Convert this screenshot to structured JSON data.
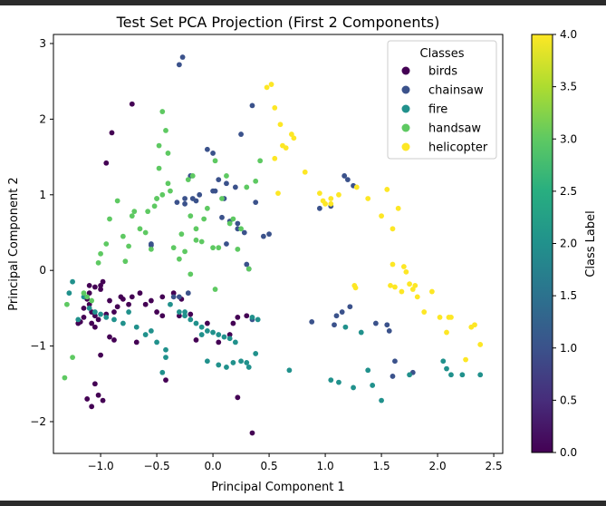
{
  "chart_data": {
    "type": "scatter",
    "title": "Test Set PCA Projection (First 2 Components)",
    "xlabel": "Principal Component 1",
    "ylabel": "Principal Component 2",
    "xlim": [
      -1.42,
      2.58
    ],
    "ylim": [
      -2.42,
      3.12
    ],
    "xticks": [
      -1.0,
      -0.5,
      0.0,
      0.5,
      1.0,
      1.5,
      2.0,
      2.5
    ],
    "xtick_labels": [
      "−1.0",
      "−0.5",
      "0.0",
      "0.5",
      "1.0",
      "1.5",
      "2.0",
      "2.5"
    ],
    "yticks": [
      -2,
      -1,
      0,
      1,
      2,
      3
    ],
    "ytick_labels": [
      "−2",
      "−1",
      "0",
      "1",
      "2",
      "3"
    ],
    "grid": false,
    "legend": {
      "title": "Classes",
      "placement": "top-right",
      "entries": [
        "birds",
        "chainsaw",
        "fire",
        "handsaw",
        "helicopter"
      ]
    },
    "colorbar": {
      "label": "Class Label",
      "min": 0.0,
      "max": 4.0,
      "ticks": [
        0.0,
        0.5,
        1.0,
        1.5,
        2.0,
        2.5,
        3.0,
        3.5,
        4.0
      ],
      "tick_labels": [
        "0.0",
        "0.5",
        "1.0",
        "1.5",
        "2.0",
        "2.5",
        "3.0",
        "3.5",
        "4.0"
      ]
    },
    "colors": {
      "birds": "#440154",
      "chainsaw": "#3b528b",
      "fire": "#21918c",
      "handsaw": "#5ec962",
      "helicopter": "#fde725"
    },
    "series": [
      {
        "name": "birds",
        "x": [
          -0.95,
          -0.9,
          -0.72,
          -1.05,
          -1.08,
          -1.1,
          -1.12,
          -1.15,
          -1.08,
          -1.05,
          -1.02,
          -1.0,
          -0.98,
          -1.1,
          -1.15,
          -1.18,
          -1.2,
          -0.95,
          -0.92,
          -0.88,
          -0.85,
          -0.82,
          -1.08,
          -1.05,
          -1.12,
          -1.02,
          -0.98,
          -1.0,
          -0.92,
          -0.88,
          -0.6,
          -0.55,
          -0.45,
          -0.35,
          -0.28,
          -0.5,
          -0.45,
          -0.42,
          -0.68,
          -0.75,
          -0.8,
          -0.72,
          -0.65,
          -1.1,
          -1.05,
          -1.0,
          -0.3,
          -0.2,
          -0.05,
          0.05,
          0.22,
          0.35,
          0.3,
          0.22,
          0.18,
          0.15,
          -0.15
        ],
        "y": [
          1.42,
          1.82,
          2.2,
          -0.6,
          -0.55,
          -0.45,
          -0.38,
          -0.5,
          -0.7,
          -0.75,
          -0.65,
          -0.25,
          -0.15,
          -0.2,
          -0.62,
          -0.68,
          -0.7,
          -0.58,
          -0.4,
          -0.55,
          -0.48,
          -0.35,
          -1.8,
          -1.5,
          -1.7,
          -1.65,
          -1.72,
          -1.12,
          -0.88,
          -0.92,
          -0.45,
          -0.4,
          -0.35,
          -0.3,
          -0.38,
          -0.55,
          -0.6,
          -1.45,
          -0.95,
          -0.45,
          -0.38,
          -0.35,
          -0.3,
          -0.3,
          -0.22,
          -0.2,
          -0.6,
          -0.58,
          -0.7,
          -0.95,
          -1.68,
          -2.15,
          -0.6,
          -0.62,
          -0.7,
          -0.85,
          -0.92
        ]
      },
      {
        "name": "chainsaw",
        "x": [
          -0.3,
          -0.27,
          -0.55,
          -0.55,
          -0.32,
          -0.25,
          -0.2,
          -0.05,
          0.0,
          0.05,
          0.1,
          0.12,
          0.2,
          0.25,
          0.35,
          0.38,
          0.45,
          0.5,
          -0.25,
          -0.18,
          -0.12,
          0.0,
          0.08,
          0.15,
          0.22,
          -0.35,
          -0.3,
          -0.22,
          0.35,
          0.88,
          1.08,
          1.15,
          1.17,
          1.2,
          1.25,
          1.05,
          0.95,
          1.45,
          1.55,
          1.57,
          1.6,
          1.62,
          1.78,
          1.22,
          1.1,
          0.3,
          0.32,
          -0.15,
          0.02,
          0.12,
          0.22,
          0.28
        ],
        "y": [
          2.72,
          2.82,
          0.35,
          0.33,
          0.9,
          0.95,
          1.25,
          1.6,
          1.55,
          1.2,
          0.95,
          1.15,
          1.1,
          1.8,
          2.18,
          0.9,
          0.45,
          0.48,
          0.88,
          0.95,
          1.0,
          1.05,
          0.7,
          0.65,
          0.62,
          -0.35,
          -0.35,
          -0.3,
          -0.65,
          -0.68,
          -0.72,
          -0.55,
          1.25,
          1.2,
          1.12,
          0.85,
          0.82,
          -0.7,
          -0.72,
          -0.8,
          -1.4,
          -1.2,
          -1.35,
          -0.48,
          -0.6,
          0.08,
          0.02,
          0.92,
          1.05,
          0.35,
          0.55,
          0.5
        ]
      },
      {
        "name": "fire",
        "x": [
          -1.25,
          -1.28,
          -1.15,
          -1.1,
          -1.05,
          -1.0,
          -0.95,
          -0.88,
          -0.8,
          -0.75,
          -0.68,
          -0.6,
          -0.55,
          -0.5,
          -0.42,
          -0.38,
          -0.3,
          -0.25,
          -0.2,
          -0.15,
          -0.1,
          -0.05,
          0.0,
          0.05,
          0.1,
          0.15,
          0.2,
          0.25,
          0.3,
          0.35,
          0.4,
          -0.1,
          -0.05,
          0.05,
          0.12,
          0.18,
          0.32,
          0.38,
          0.68,
          1.05,
          1.12,
          1.25,
          1.38,
          1.42,
          1.5,
          1.75,
          2.05,
          2.12,
          2.22,
          2.38,
          2.08,
          1.32,
          1.18,
          -0.42,
          -0.45,
          -0.25,
          -1.2
        ],
        "y": [
          -0.15,
          -0.3,
          -0.35,
          -0.5,
          -0.55,
          -0.58,
          -0.62,
          -0.65,
          -0.7,
          -0.55,
          -0.75,
          -0.85,
          -0.8,
          -0.95,
          -1.05,
          -0.45,
          -0.55,
          -0.6,
          -0.65,
          -0.7,
          -0.75,
          -0.8,
          -0.82,
          -0.85,
          -0.88,
          -0.9,
          -0.95,
          -1.2,
          -1.22,
          -0.62,
          -0.65,
          -0.85,
          -1.2,
          -1.25,
          -1.28,
          -1.22,
          -1.28,
          -1.1,
          -1.32,
          -1.45,
          -1.48,
          -1.55,
          -1.32,
          -1.52,
          -1.72,
          -1.38,
          -1.2,
          -1.38,
          -1.38,
          -1.38,
          -1.3,
          -0.82,
          -0.75,
          -1.15,
          -1.35,
          -0.55,
          -0.65
        ]
      },
      {
        "name": "handsaw",
        "x": [
          -1.3,
          -1.32,
          -1.25,
          -1.15,
          -1.12,
          -1.08,
          -1.02,
          -1.0,
          -0.95,
          -0.92,
          -0.85,
          -0.8,
          -0.78,
          -0.75,
          -0.72,
          -0.7,
          -0.65,
          -0.6,
          -0.58,
          -0.55,
          -0.5,
          -0.48,
          -0.45,
          -0.42,
          -0.4,
          -0.38,
          -0.35,
          -0.3,
          -0.28,
          -0.22,
          -0.2,
          -0.18,
          -0.15,
          -0.1,
          -0.08,
          -0.05,
          0.0,
          0.02,
          0.05,
          0.08,
          0.12,
          0.15,
          0.18,
          0.22,
          0.25,
          0.3,
          0.32,
          0.38,
          0.42,
          -0.48,
          -0.5,
          -0.45,
          -0.4,
          -0.52,
          -0.2,
          -0.25,
          -0.15,
          0.02
        ],
        "y": [
          -0.45,
          -1.42,
          -1.15,
          -0.3,
          -0.35,
          -0.4,
          0.1,
          0.22,
          0.35,
          0.68,
          0.92,
          0.45,
          0.12,
          0.32,
          0.72,
          0.78,
          0.55,
          0.5,
          0.78,
          0.28,
          0.95,
          1.65,
          2.1,
          1.85,
          1.55,
          1.05,
          0.3,
          0.15,
          0.48,
          1.2,
          0.72,
          1.25,
          0.55,
          0.38,
          0.68,
          0.82,
          0.3,
          1.45,
          0.3,
          0.95,
          1.25,
          0.62,
          0.68,
          0.28,
          0.55,
          1.1,
          0.02,
          1.18,
          1.45,
          1.35,
          0.95,
          1.0,
          1.15,
          0.85,
          -0.05,
          0.25,
          0.4,
          -0.25
        ]
      },
      {
        "name": "helicopter",
        "x": [
          0.48,
          0.52,
          0.55,
          0.6,
          0.62,
          0.65,
          0.7,
          0.72,
          0.55,
          0.58,
          0.82,
          0.95,
          1.0,
          1.05,
          1.12,
          1.05,
          0.98,
          1.28,
          1.38,
          1.5,
          1.55,
          1.6,
          1.62,
          1.58,
          1.6,
          1.65,
          1.68,
          1.7,
          1.72,
          1.75,
          1.78,
          1.8,
          1.82,
          1.88,
          1.95,
          2.02,
          2.1,
          2.12,
          2.08,
          2.3,
          2.33,
          2.38,
          2.25,
          1.26,
          1.27
        ],
        "y": [
          2.42,
          2.46,
          2.15,
          1.93,
          1.65,
          1.62,
          1.8,
          1.75,
          1.48,
          1.02,
          1.3,
          1.02,
          0.88,
          0.95,
          1.0,
          0.88,
          0.92,
          1.1,
          0.95,
          0.72,
          1.07,
          0.08,
          -0.22,
          -0.2,
          0.55,
          0.82,
          -0.28,
          0.05,
          -0.02,
          -0.18,
          -0.25,
          -0.2,
          -0.35,
          -0.55,
          -0.28,
          -0.62,
          -0.62,
          -0.62,
          -0.82,
          -0.75,
          -0.72,
          -0.98,
          -1.18,
          -0.2,
          -0.23
        ]
      }
    ]
  }
}
